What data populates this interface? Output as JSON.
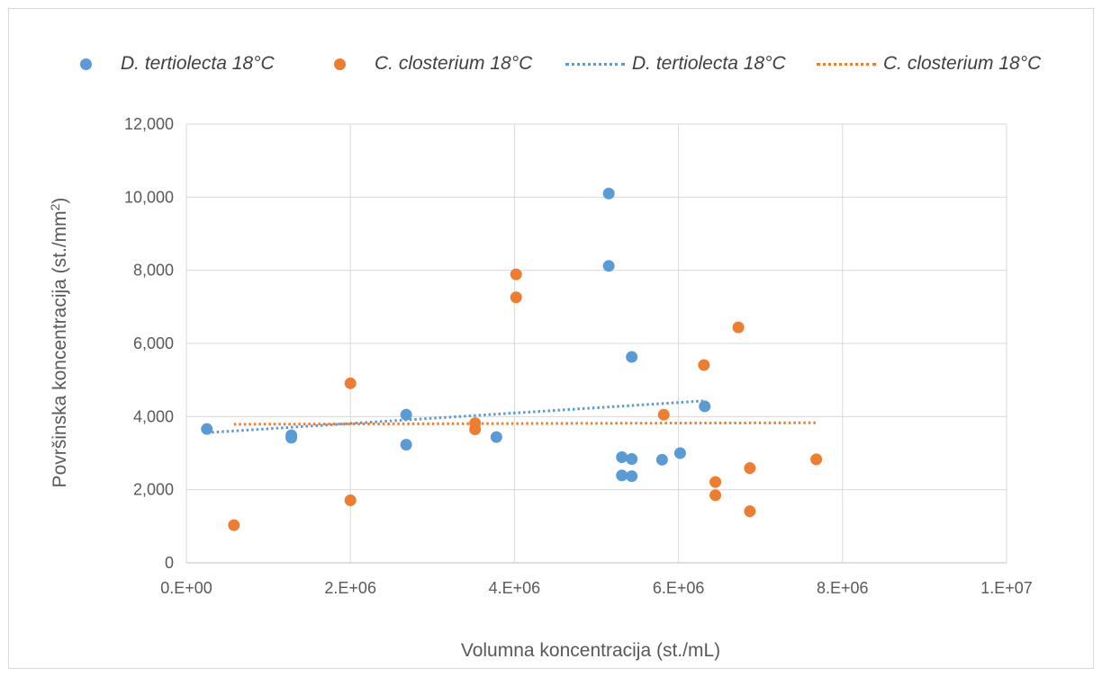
{
  "chart_data": {
    "type": "scatter",
    "title": "",
    "xlabel": "Volumna koncentracija (st./mL)",
    "ylabel_main": "Površinska koncentracija (st./mm",
    "ylabel_sup": "2",
    "ylabel_end": ")",
    "xlim": [
      0,
      10000000
    ],
    "ylim": [
      0,
      12000
    ],
    "x_ticks": [
      "0.E+00",
      "2.E+06",
      "4.E+06",
      "6.E+06",
      "8.E+06",
      "1.E+07"
    ],
    "y_ticks": [
      "0",
      "2,000",
      "4,000",
      "6,000",
      "8,000",
      "10,000",
      "12,000"
    ],
    "grid": true,
    "legend_position": "top",
    "series": [
      {
        "name": "D. tertiolecta 18°C",
        "color": "#5b9bd5",
        "points": [
          [
            250000,
            3660
          ],
          [
            1280000,
            3490
          ],
          [
            1280000,
            3420
          ],
          [
            2680000,
            4050
          ],
          [
            2680000,
            3230
          ],
          [
            3780000,
            3440
          ],
          [
            5150000,
            10100
          ],
          [
            5150000,
            8120
          ],
          [
            5430000,
            5630
          ],
          [
            5310000,
            2890
          ],
          [
            5430000,
            2840
          ],
          [
            5310000,
            2390
          ],
          [
            5430000,
            2370
          ],
          [
            5800000,
            2820
          ],
          [
            6020000,
            3000
          ],
          [
            6320000,
            4280
          ]
        ]
      },
      {
        "name": "C. closterium 18°C",
        "color": "#ed7d31",
        "points": [
          [
            580000,
            1030
          ],
          [
            2000000,
            4910
          ],
          [
            2000000,
            1710
          ],
          [
            3520000,
            3820
          ],
          [
            3520000,
            3650
          ],
          [
            4020000,
            7890
          ],
          [
            4020000,
            7260
          ],
          [
            5820000,
            4050
          ],
          [
            6310000,
            5410
          ],
          [
            6730000,
            6440
          ],
          [
            6450000,
            2210
          ],
          [
            6450000,
            1850
          ],
          [
            6870000,
            2590
          ],
          [
            6870000,
            1410
          ],
          [
            7680000,
            2830
          ]
        ]
      }
    ],
    "trendlines": [
      {
        "name": "D. tertiolecta 18°C",
        "color": "#5b9bd5",
        "x": [
          250000,
          6320000
        ],
        "y": [
          3560,
          4430
        ]
      },
      {
        "name": "C. closterium 18°C",
        "color": "#ed7d31",
        "x": [
          580000,
          7680000
        ],
        "y": [
          3790,
          3830
        ]
      }
    ]
  }
}
